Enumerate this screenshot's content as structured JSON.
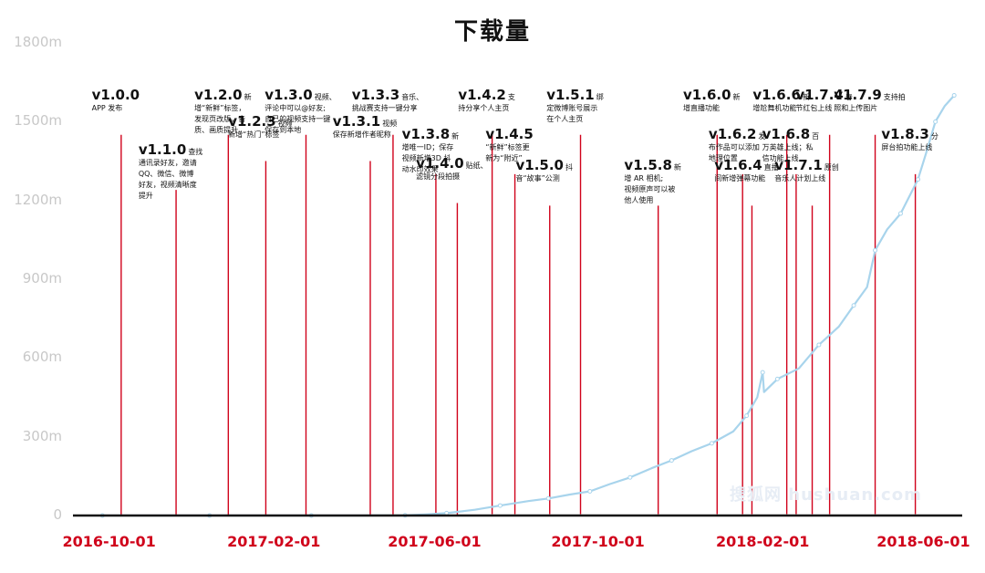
{
  "chart_data": {
    "type": "line",
    "title": "下载量",
    "y_ticks": [
      "0",
      "300m",
      "600m",
      "900m",
      "1200m",
      "1500m",
      "1800m"
    ],
    "ylim": [
      0,
      1800
    ],
    "xlim": [
      "2016-09-04",
      "2018-06-30"
    ],
    "x_tick_labels": [
      {
        "date": "2016-10-01",
        "label": "2016-10-01"
      },
      {
        "date": "2017-02-01",
        "label": "2017-02-01"
      },
      {
        "date": "2017-06-01",
        "label": "2017-06-01"
      },
      {
        "date": "2017-10-01",
        "label": "2017-10-01"
      },
      {
        "date": "2018-02-01",
        "label": "2018-02-01"
      },
      {
        "date": "2018-06-01",
        "label": "2018-06-01"
      }
    ],
    "series": [
      {
        "color": "#a8d4ec",
        "points": [
          [
            "2016-09-26",
            0
          ],
          [
            "2016-11-01",
            0
          ],
          [
            "2016-12-15",
            0
          ],
          [
            "2017-01-20",
            0
          ],
          [
            "2017-03-01",
            0
          ],
          [
            "2017-04-10",
            0
          ],
          [
            "2017-05-10",
            1
          ],
          [
            "2017-05-25",
            4
          ],
          [
            "2017-06-10",
            9
          ],
          [
            "2017-07-01",
            22
          ],
          [
            "2017-07-20",
            38
          ],
          [
            "2017-08-10",
            55
          ],
          [
            "2017-08-25",
            65
          ],
          [
            "2017-09-10",
            80
          ],
          [
            "2017-09-25",
            92
          ],
          [
            "2017-10-10",
            120
          ],
          [
            "2017-10-25",
            145
          ],
          [
            "2017-11-10",
            180
          ],
          [
            "2017-11-25",
            210
          ],
          [
            "2017-12-10",
            245
          ],
          [
            "2017-12-25",
            275
          ],
          [
            "2018-01-10",
            320
          ],
          [
            "2018-01-20",
            380
          ],
          [
            "2018-01-28",
            450
          ],
          [
            "2018-02-01",
            545
          ],
          [
            "2018-02-02",
            470
          ],
          [
            "2018-02-12",
            520
          ],
          [
            "2018-02-28",
            560
          ],
          [
            "2018-03-15",
            650
          ],
          [
            "2018-03-30",
            720
          ],
          [
            "2018-04-10",
            800
          ],
          [
            "2018-04-20",
            870
          ],
          [
            "2018-04-26",
            1010
          ],
          [
            "2018-05-05",
            1090
          ],
          [
            "2018-05-15",
            1150
          ],
          [
            "2018-05-21",
            1210
          ],
          [
            "2018-05-28",
            1280
          ],
          [
            "2018-06-03",
            1380
          ],
          [
            "2018-06-10",
            1500
          ],
          [
            "2018-06-17",
            1560
          ],
          [
            "2018-06-24",
            1600
          ]
        ]
      }
    ],
    "annotations": [
      {
        "version": "v1.0.0",
        "desc": "APP 发布",
        "desc_after": "",
        "date": "2016-10-10",
        "bottom": 0,
        "top": 1450
      },
      {
        "version": "v1.1.0",
        "desc": "通讯录好友，邀请\nQQ、微信、微博\n好友，视频清晰度\n提升",
        "desc_after": "查找",
        "date": "2016-11-20",
        "bottom": 0,
        "top": 1240
      },
      {
        "version": "v1.2.0",
        "desc": "增“新鲜”标签，\n发现页改版，音\n质、画质提升",
        "desc_after": "新",
        "date": "2016-12-29",
        "bottom": 0,
        "top": 1450
      },
      {
        "version": "v1.2.3",
        "desc": "新增“热门”标签",
        "desc_after": "视频",
        "date": "2017-01-26",
        "bottom": 0,
        "top": 1350
      },
      {
        "version": "v1.3.0",
        "desc": "评论中可以@好友;\n自己的视频支持一键\n保存到本地",
        "desc_after": "视频、",
        "date": "2017-02-25",
        "bottom": 0,
        "top": 1450
      },
      {
        "version": "v1.3.1",
        "desc": "保存新增作者昵称",
        "desc_after": "视频",
        "date": "2017-04-14",
        "bottom": 0,
        "top": 1350
      },
      {
        "version": "v1.3.3",
        "desc": "挑战赛支持一键分享",
        "desc_after": "音乐、",
        "date": "2017-05-01",
        "bottom": 0,
        "top": 1450
      },
      {
        "version": "v1.3.8",
        "desc": "增唯一ID；保存\n视频新增3D 抖\n动水印效果",
        "desc_after": "新",
        "date": "2017-06-02",
        "bottom": 0,
        "top": 1300
      },
      {
        "version": "v1.4.0",
        "desc": "滤镜分段拍摄",
        "desc_after": "贴纸、",
        "date": "2017-06-18",
        "bottom": 0,
        "top": 1190
      },
      {
        "version": "v1.4.2",
        "desc": "持分享个人主页",
        "desc_after": "支",
        "date": "2017-07-14",
        "bottom": 5,
        "top": 1450
      },
      {
        "version": "v1.4.5",
        "desc": "“新鲜”标签更\n新为“附近”",
        "desc_after": "",
        "date": "2017-07-31",
        "bottom": 5,
        "top": 1300
      },
      {
        "version": "v1.5.0",
        "desc": "音“故事”公测",
        "desc_after": "抖",
        "date": "2017-08-26",
        "bottom": 5,
        "top": 1180
      },
      {
        "version": "v1.5.1",
        "desc": "定微博账号展示\n在个人主页",
        "desc_after": "绑",
        "date": "2017-09-18",
        "bottom": 5,
        "top": 1450
      },
      {
        "version": "v1.5.8",
        "desc": "增 AR 相机;\n视频原声可以被\n他人使用",
        "desc_after": "新",
        "date": "2017-11-15",
        "bottom": 5,
        "top": 1180
      },
      {
        "version": "v1.6.0",
        "desc": "增直播功能",
        "desc_after": "新",
        "date": "2017-12-29",
        "bottom": 5,
        "top": 1450
      },
      {
        "version": "v1.6.2",
        "desc": "布作品可以添加\n地理位置",
        "desc_after": "发",
        "date": "2018-01-17",
        "bottom": 5,
        "top": 1300
      },
      {
        "version": "v1.6.4",
        "desc": "间新增弹幕功能",
        "desc_after": "直播",
        "date": "2018-01-24",
        "bottom": 5,
        "top": 1180
      },
      {
        "version": "v1.6.6",
        "desc": "增尬舞机功能",
        "desc_after": "新",
        "date": "2018-02-19",
        "bottom": 5,
        "top": 1450
      },
      {
        "version": "v1.6.8",
        "desc": "万英雄上线；私\n信功能上线",
        "desc_after": "百",
        "date": "2018-02-26",
        "bottom": 5,
        "top": 1300
      },
      {
        "version": "v1.7.1",
        "desc": "音乐人计划上线",
        "desc_after": "原创",
        "date": "2018-03-10",
        "bottom": 5,
        "top": 1180
      },
      {
        "version": "v1.7.4",
        "desc": "节红包上线",
        "desc_after": "春",
        "date": "2018-03-23",
        "bottom": 5,
        "top": 1450
      },
      {
        "version": "v1.7.9",
        "desc": "照和上传图片",
        "desc_after": "支持拍",
        "date": "2018-04-26",
        "bottom": 5,
        "top": 1450
      },
      {
        "version": "v1.8.3",
        "desc": "屏台拍功能上线",
        "desc_after": "分",
        "date": "2018-05-26",
        "bottom": 5,
        "top": 1300
      }
    ]
  },
  "watermark": "搜狐网 hushuan.com"
}
